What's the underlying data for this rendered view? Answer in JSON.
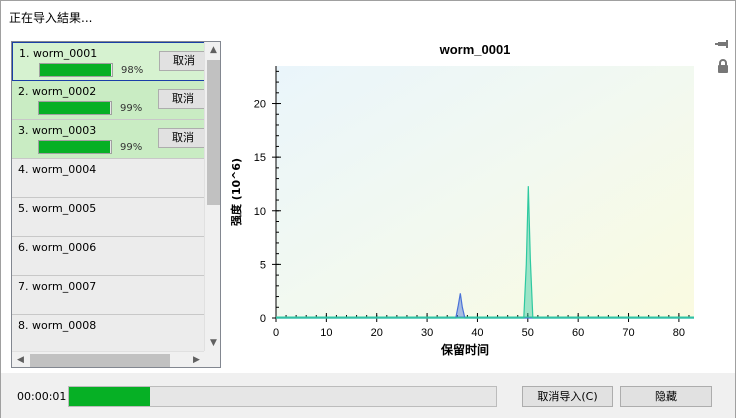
{
  "title": "正在导入結果...",
  "items": [
    {
      "label": "1. worm_0001",
      "progress": 98,
      "pct_label": "98%",
      "cancel": "取消",
      "state": "selected"
    },
    {
      "label": "2. worm_0002",
      "progress": 99,
      "pct_label": "99%",
      "cancel": "取消",
      "state": "done"
    },
    {
      "label": "3. worm_0003",
      "progress": 99,
      "pct_label": "99%",
      "cancel": "取消",
      "state": "done"
    },
    {
      "label": "4. worm_0004",
      "state": "pending"
    },
    {
      "label": "5. worm_0005",
      "state": "pending"
    },
    {
      "label": "6. worm_0006",
      "state": "pending"
    },
    {
      "label": "7. worm_0007",
      "state": "pending"
    },
    {
      "label": "8. worm_0008",
      "state": "pending"
    }
  ],
  "chart_data": {
    "type": "line",
    "title": "worm_0001",
    "xlabel": "保留时间",
    "ylabel": "强度 (10^6)",
    "xlim": [
      0,
      83
    ],
    "ylim": [
      0,
      23.5
    ],
    "xticks": [
      0,
      10,
      20,
      30,
      40,
      50,
      60,
      70,
      80
    ],
    "yticks": [
      0,
      5,
      10,
      15,
      20
    ],
    "series": [
      {
        "color": "#4a72d8",
        "x": [
          0,
          35.7,
          36.2,
          36.6,
          37.0,
          37.5,
          83
        ],
        "y": [
          0,
          0,
          1.2,
          2.3,
          1.0,
          0,
          0
        ]
      },
      {
        "color": "#2ec9a0",
        "x": [
          0,
          49.2,
          49.7,
          50.1,
          50.5,
          51.0,
          83
        ],
        "y": [
          0,
          0,
          5.0,
          12.3,
          5.5,
          0,
          0
        ]
      }
    ]
  },
  "side_icons": [
    "pin-icon",
    "lock-icon"
  ],
  "footer": {
    "elapsed": "00:00:01",
    "progress": 19,
    "cancel_import": "取消导入(C)",
    "hide": "隐藏"
  },
  "colors": {
    "progress": "#06b025",
    "accent": "#1a3fa8"
  }
}
